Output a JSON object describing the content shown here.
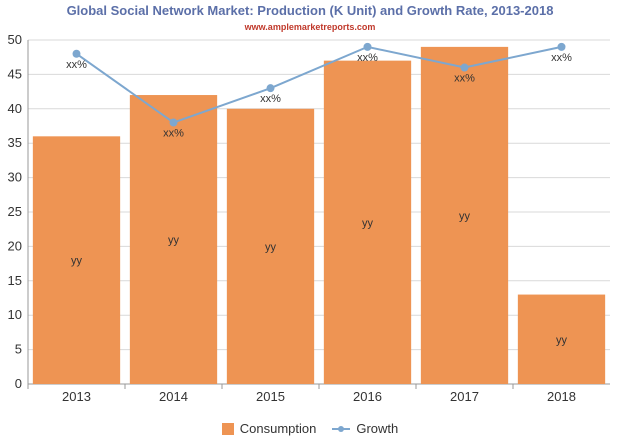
{
  "header": {
    "title": "Global Social Network Market: Production (K Unit) and Growth Rate, 2013-2018",
    "subtitle": "www.amplemarketreports.com"
  },
  "chart_data": {
    "type": "bar",
    "categories": [
      "2013",
      "2014",
      "2015",
      "2016",
      "2017",
      "2018"
    ],
    "series": [
      {
        "name": "Consumption",
        "type": "bar",
        "values": [
          36,
          42,
          40,
          47,
          49,
          13
        ],
        "labels": [
          "yy",
          "yy",
          "yy",
          "yy",
          "yy",
          "yy"
        ]
      },
      {
        "name": "Growth",
        "type": "line",
        "values": [
          48,
          38,
          43,
          49,
          46,
          49
        ],
        "labels": [
          "xx%",
          "xx%",
          "xx%",
          "xx%",
          "xx%",
          "xx%"
        ]
      }
    ],
    "ylim": [
      0,
      50
    ],
    "yticks": [
      0,
      5,
      10,
      15,
      20,
      25,
      30,
      35,
      40,
      45,
      50
    ],
    "grid": true,
    "legend_position": "bottom",
    "colors": {
      "bar": "#ee9453",
      "line": "#7da7cf"
    }
  }
}
